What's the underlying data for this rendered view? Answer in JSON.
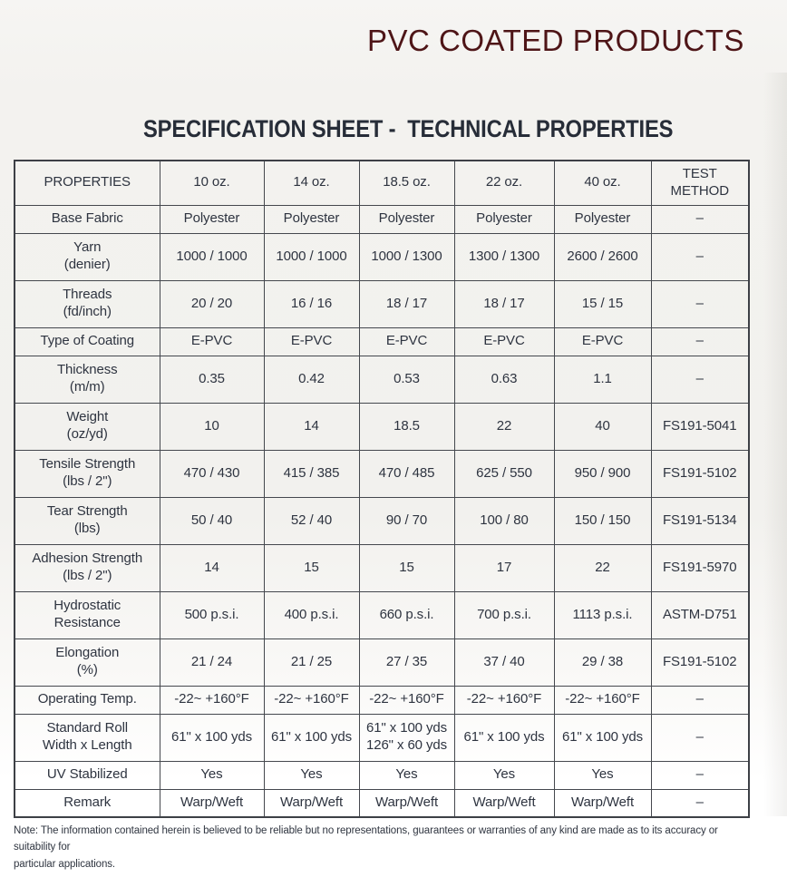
{
  "page": {
    "title": "PVC COATED PRODUCTS",
    "heading": "SPECIFICATION SHEET -  TECHNICAL PROPERTIES",
    "note": "Note: The information contained herein is believed to be reliable but no representations, guarantees or warranties of any kind are made as to its accuracy or suitability for\nparticular applications."
  },
  "colors": {
    "title_text": "#4e1517",
    "heading_text": "#272d38",
    "table_text": "#2e3440",
    "table_border": "#45484e",
    "paper_background": "#f3f2ef"
  },
  "table": {
    "columns": [
      "PROPERTIES",
      "10 oz.",
      "14 oz.",
      "18.5 oz.",
      "22 oz.",
      "40 oz.",
      "TEST\nMETHOD"
    ],
    "rows": [
      {
        "property": "Base Fabric",
        "cells": [
          "Polyester",
          "Polyester",
          "Polyester",
          "Polyester",
          "Polyester"
        ],
        "test": "–"
      },
      {
        "property": "Yarn\n(denier)",
        "cells": [
          "1000 / 1000",
          "1000 / 1000",
          "1000 / 1300",
          "1300 / 1300",
          "2600 / 2600"
        ],
        "test": "–"
      },
      {
        "property": "Threads\n(fd/inch)",
        "cells": [
          "20 / 20",
          "16 / 16",
          "18 / 17",
          "18 / 17",
          "15 / 15"
        ],
        "test": "–"
      },
      {
        "property": "Type of Coating",
        "cells": [
          "E-PVC",
          "E-PVC",
          "E-PVC",
          "E-PVC",
          "E-PVC"
        ],
        "test": "–"
      },
      {
        "property": "Thickness\n(m/m)",
        "cells": [
          "0.35",
          "0.42",
          "0.53",
          "0.63",
          "1.1"
        ],
        "test": "–"
      },
      {
        "property": "Weight\n(oz/yd)",
        "cells": [
          "10",
          "14",
          "18.5",
          "22",
          "40"
        ],
        "test": "FS191-5041"
      },
      {
        "property": "Tensile Strength\n(lbs / 2\")",
        "cells": [
          "470 / 430",
          "415 / 385",
          "470 / 485",
          "625 / 550",
          "950 / 900"
        ],
        "test": "FS191-5102"
      },
      {
        "property": "Tear Strength\n(lbs)",
        "cells": [
          "50 / 40",
          "52 / 40",
          "90 / 70",
          "100 / 80",
          "150 / 150"
        ],
        "test": "FS191-5134"
      },
      {
        "property": "Adhesion Strength\n(lbs / 2\")",
        "cells": [
          "14",
          "15",
          "15",
          "17",
          "22"
        ],
        "test": "FS191-5970"
      },
      {
        "property": "Hydrostatic\nResistance",
        "cells": [
          "500 p.s.i.",
          "400 p.s.i.",
          "660 p.s.i.",
          "700 p.s.i.",
          "1113 p.s.i."
        ],
        "test": "ASTM-D751"
      },
      {
        "property": "Elongation\n(%)",
        "cells": [
          "21 / 24",
          "21 / 25",
          "27 / 35",
          "37 / 40",
          "29 / 38"
        ],
        "test": "FS191-5102"
      },
      {
        "property": "Operating Temp.",
        "cells": [
          "-22~ +160°F",
          "-22~ +160°F",
          "-22~ +160°F",
          "-22~ +160°F",
          "-22~ +160°F"
        ],
        "test": "–"
      },
      {
        "property": "Standard Roll\nWidth x Length",
        "cells": [
          "61\" x 100 yds",
          "61\" x 100 yds",
          "61\" x 100 yds\n126\" x 60 yds",
          "61\" x 100 yds",
          "61\" x 100 yds"
        ],
        "test": "–"
      },
      {
        "property": "UV Stabilized",
        "cells": [
          "Yes",
          "Yes",
          "Yes",
          "Yes",
          "Yes"
        ],
        "test": "–"
      },
      {
        "property": "Remark",
        "cells": [
          "Warp/Weft",
          "Warp/Weft",
          "Warp/Weft",
          "Warp/Weft",
          "Warp/Weft"
        ],
        "test": "–"
      }
    ]
  }
}
